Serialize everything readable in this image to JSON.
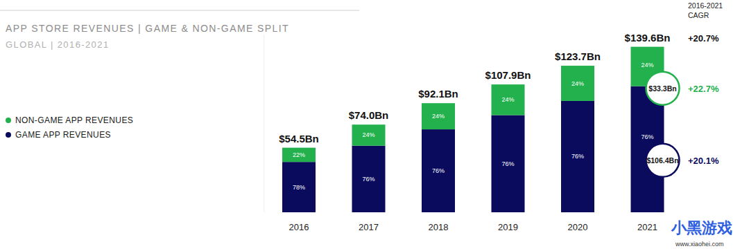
{
  "chart_data": {
    "type": "bar",
    "title": "APP STORE REVENUES | GAME & NON-GAME SPLIT",
    "subtitle": "GLOBAL | 2016-2021",
    "categories": [
      "2016",
      "2017",
      "2018",
      "2019",
      "2020",
      "2021"
    ],
    "series": [
      {
        "name": "NON-GAME APP REVENUES",
        "color": "#22b14c",
        "values": [
          12.0,
          17.8,
          22.1,
          25.9,
          29.7,
          33.3
        ],
        "value_labels": [
          null,
          null,
          null,
          null,
          null,
          "$33.3Bn"
        ],
        "share_labels": [
          "22%",
          "24%",
          "24%",
          "24%",
          "24%",
          "24%"
        ],
        "cagr_label": "+22.7%"
      },
      {
        "name": "GAME APP REVENUES",
        "color": "#0b0b5e",
        "values": [
          42.5,
          56.2,
          70.0,
          82.0,
          94.0,
          106.4
        ],
        "value_labels": [
          null,
          null,
          null,
          null,
          null,
          "$106.4Bn"
        ],
        "share_labels": [
          "78%",
          "76%",
          "76%",
          "76%",
          "76%",
          "76%"
        ],
        "cagr_label": "+20.1%"
      }
    ],
    "totals": [
      54.5,
      74.0,
      92.1,
      107.9,
      123.7,
      139.6
    ],
    "total_labels": [
      "$54.5Bn",
      "$74.0Bn",
      "$92.1Bn",
      "$107.9Bn",
      "$123.7Bn",
      "$139.6Bn"
    ],
    "cagr_header": [
      "2016-2021",
      "CAGR"
    ],
    "total_cagr_label": "+20.7%",
    "watermark": [
      "小黑游戏",
      "www.xiaohei.com"
    ],
    "ylim": [
      0,
      150
    ],
    "yticks": [],
    "stacked": true,
    "data_labels": true,
    "tick_labels": "x",
    "grid": false,
    "legend": "left"
  }
}
